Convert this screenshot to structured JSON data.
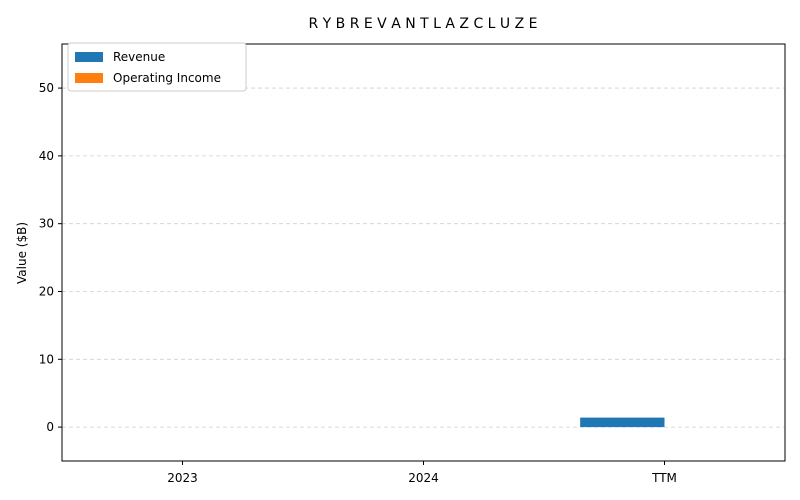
{
  "chart_data": {
    "type": "bar",
    "title": "R Y B R E V A N T L A Z C L U Z E",
    "xlabel": "",
    "ylabel": "Value ($B)",
    "categories": [
      "2023",
      "2024",
      "TTM"
    ],
    "series": [
      {
        "name": "Revenue",
        "color": "#1f77b4",
        "values": [
          0,
          0,
          1.4
        ]
      },
      {
        "name": "Operating Income",
        "color": "#ff7f0e",
        "values": [
          0,
          0,
          0
        ]
      }
    ],
    "ylim": [
      -5,
      56.5
    ],
    "yticks": [
      "0",
      "10",
      "20",
      "30",
      "40",
      "50"
    ],
    "grid": true,
    "legend_position": "top-left"
  }
}
